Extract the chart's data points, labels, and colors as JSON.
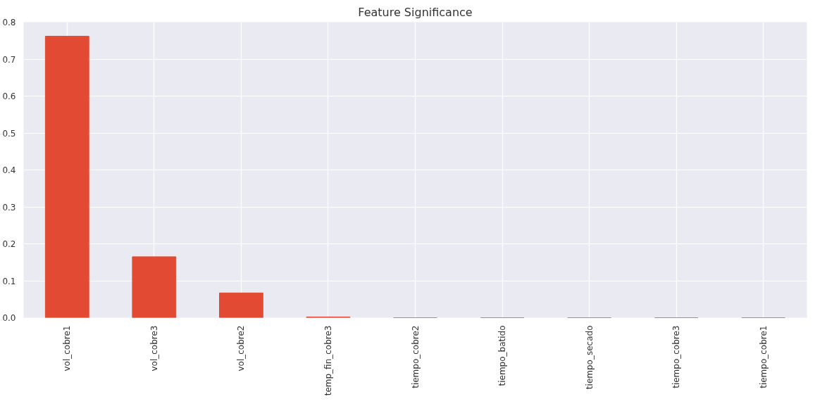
{
  "chart_data": {
    "type": "bar",
    "title": "Feature Significance",
    "categories": [
      "vol_cobre1",
      "vol_cobre3",
      "vol_cobre2",
      "temp_fin_cobre3",
      "tiempo_cobre2",
      "tiempo_batido",
      "tiempo_secado",
      "tiempo_cobre3",
      "tiempo_cobre1"
    ],
    "values": [
      0.762,
      0.165,
      0.067,
      0.002,
      0,
      0,
      0,
      0,
      0
    ],
    "color": "#e24a33",
    "ylim": [
      0,
      0.8
    ],
    "yticks": [
      {
        "value": 0,
        "label": "0.0"
      },
      {
        "value": 0.1,
        "label": "0.1"
      },
      {
        "value": 0.2,
        "label": "0.2"
      },
      {
        "value": 0.3,
        "label": "0.3"
      },
      {
        "value": 0.4,
        "label": "0.4"
      },
      {
        "value": 0.5,
        "label": "0.5"
      },
      {
        "value": 0.6,
        "label": "0.6"
      },
      {
        "value": 0.7,
        "label": "0.7"
      },
      {
        "value": 0.8,
        "label": "0.8"
      }
    ],
    "grid": true
  }
}
